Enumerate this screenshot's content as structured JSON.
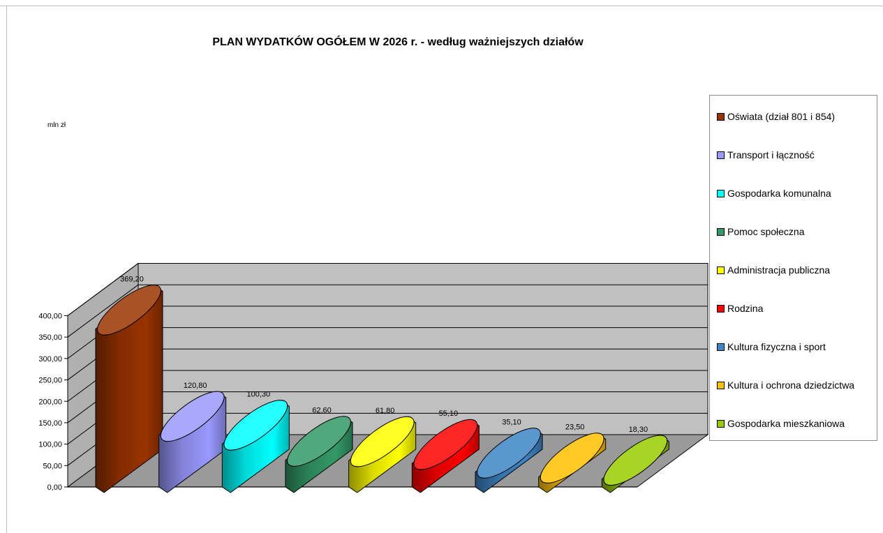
{
  "chart_data": {
    "type": "bar",
    "style": "3d-cylinder",
    "title": "PLAN WYDATKÓW OGÓŁEM W 2026 r. - według ważniejszych działów",
    "ylabel": "mln zł",
    "ylim": [
      0,
      400
    ],
    "ytick_labels": [
      "0,00",
      "50,00",
      "100,00",
      "150,00",
      "200,00",
      "250,00",
      "300,00",
      "350,00",
      "400,00"
    ],
    "grid": true,
    "legend_position": "right",
    "categories": [
      "Oświata (dział 801 i 854)",
      "Transport i łączność",
      "Gospodarka komunalna",
      "Pomoc społeczna",
      "Administracja publiczna",
      "Rodzina",
      "Kultura fizyczna i sport",
      "Kultura i ochrona dziedzictwa",
      "Gospodarka mieszkaniowa"
    ],
    "values": [
      369.2,
      120.8,
      100.3,
      62.6,
      61.8,
      55.1,
      35.1,
      23.5,
      18.3
    ],
    "value_labels": [
      "369,20",
      "120,80",
      "100,30",
      "62,60",
      "61,80",
      "55,10",
      "35,10",
      "23,50",
      "18,30"
    ],
    "colors": [
      "#993300",
      "#9999ff",
      "#00ffff",
      "#339966",
      "#ffff00",
      "#ff0000",
      "#3d85c6",
      "#ffc000",
      "#99cc00"
    ]
  }
}
